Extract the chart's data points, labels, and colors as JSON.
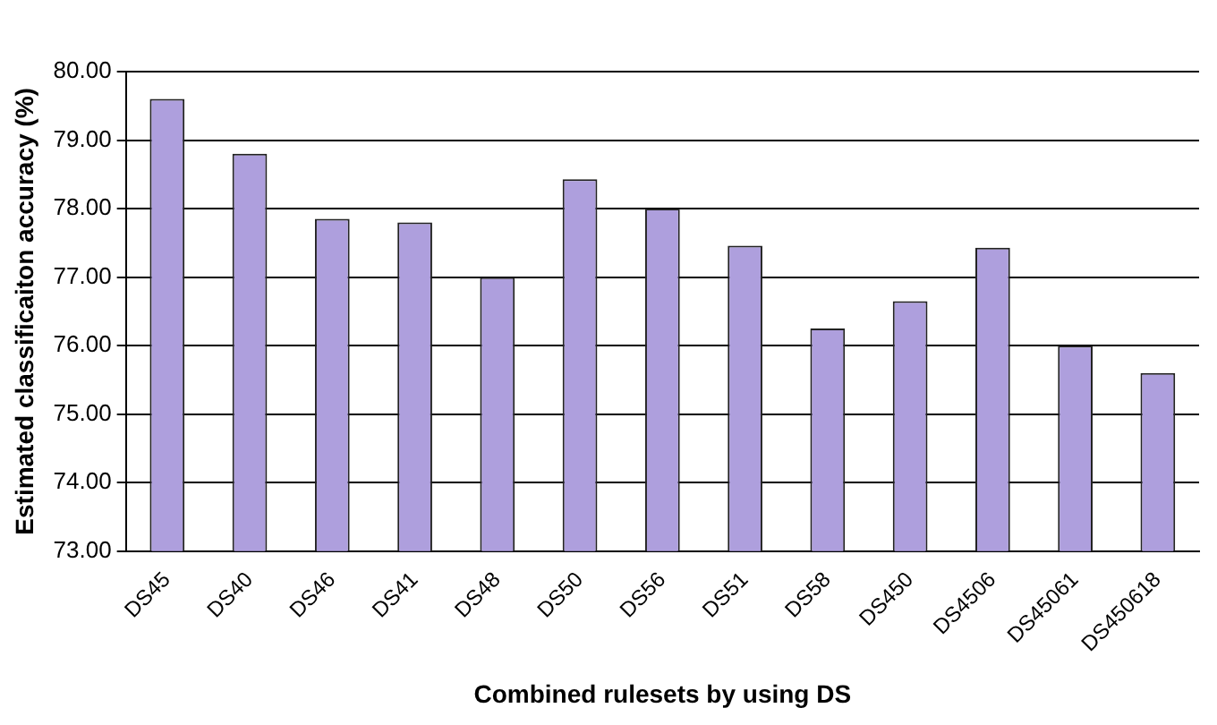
{
  "chart_data": {
    "type": "bar",
    "xlabel": "Combined rulesets by using DS",
    "ylabel": "Estimated classificaiton accuracy (%)",
    "categories": [
      "DS45",
      "DS40",
      "DS46",
      "DS41",
      "DS48",
      "DS50",
      "DS56",
      "DS51",
      "DS58",
      "DS450",
      "DS4506",
      "DS45061",
      "DS450618"
    ],
    "values": [
      79.6,
      78.8,
      77.85,
      77.8,
      77.0,
      78.43,
      78.0,
      77.46,
      76.25,
      76.65,
      77.43,
      76.0,
      75.6
    ],
    "color": "#ae9fdd",
    "ylim": [
      73,
      80
    ],
    "yticks": [
      {
        "value": 73,
        "label": "73.00"
      },
      {
        "value": 74,
        "label": "74.00"
      },
      {
        "value": 75,
        "label": "75.00"
      },
      {
        "value": 76,
        "label": "76.00"
      },
      {
        "value": 77,
        "label": "77.00"
      },
      {
        "value": 78,
        "label": "78.00"
      },
      {
        "value": 79,
        "label": "79.00"
      },
      {
        "value": 80,
        "label": "80.00"
      }
    ],
    "grid": "y",
    "legend": false
  }
}
